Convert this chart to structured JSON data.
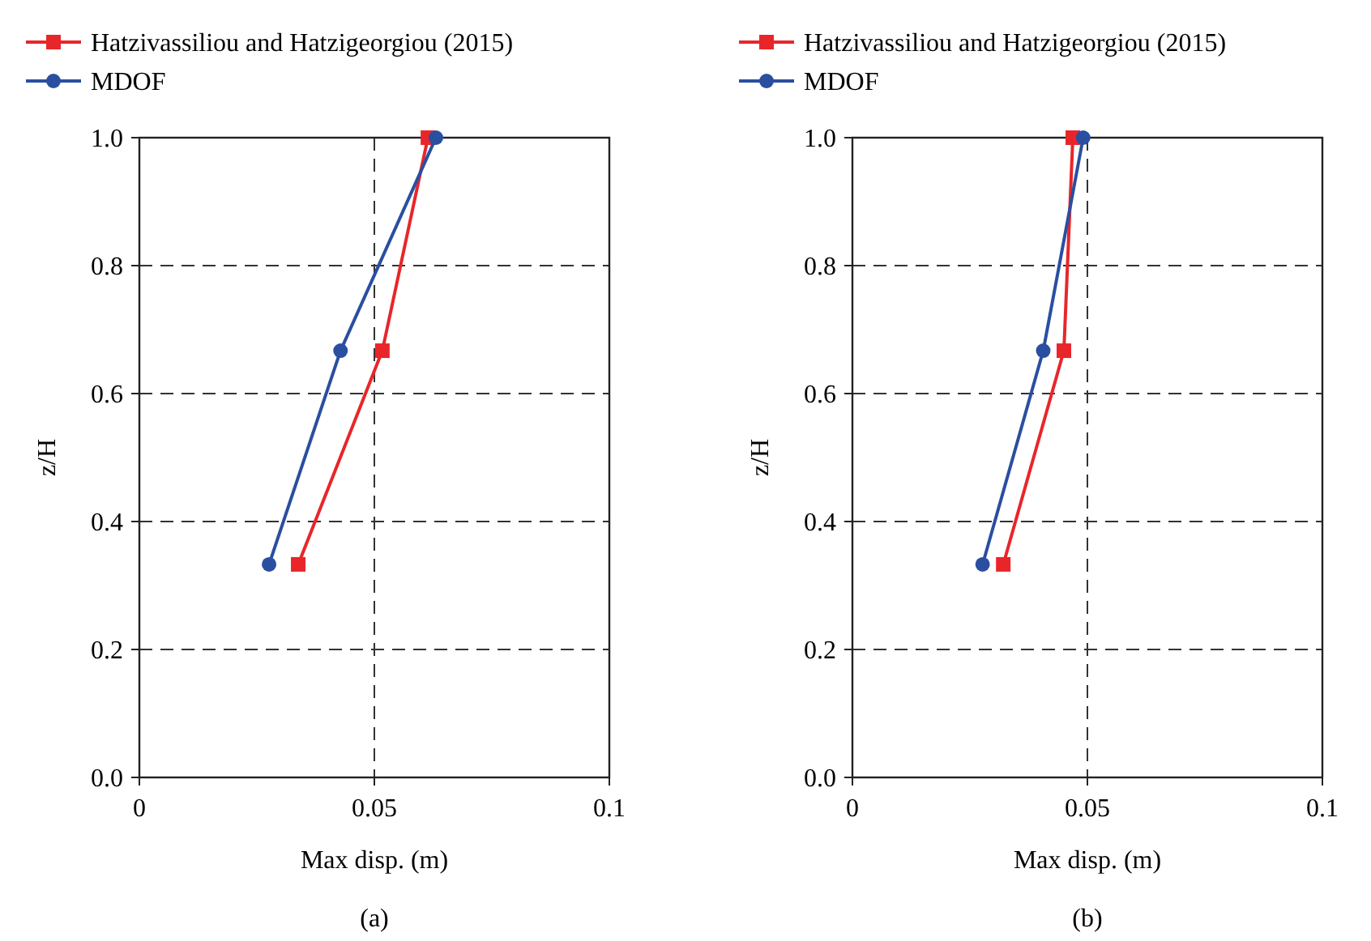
{
  "chart_data": [
    {
      "type": "line",
      "xlabel": "Max disp. (m)",
      "ylabel": "z/H",
      "annotations": [
        "(a)"
      ],
      "xlim": [
        0,
        0.1
      ],
      "xticks": [
        0,
        0.05,
        0.1
      ],
      "ylim": [
        0,
        1
      ],
      "yticks": [
        {
          "value": 0,
          "label": "0.0"
        },
        {
          "value": 0.2,
          "label": "0.2"
        },
        {
          "value": 0.4,
          "label": "0.4"
        },
        {
          "value": 0.6,
          "label": "0.6"
        },
        {
          "value": 0.8,
          "label": "0.8"
        },
        {
          "value": 1,
          "label": "1.0"
        }
      ],
      "grid": true,
      "legend": "top left",
      "line_style": "solid",
      "series": [
        {
          "name": "Hatzivassiliou and Hatzigeorgiou (2015)",
          "color": "#e8262a",
          "marker": "square",
          "x": [
            0.0338,
            0.0517,
            0.0614
          ],
          "values": [
            0.333,
            0.667,
            1
          ]
        },
        {
          "name": "MDOF",
          "color": "#2a4fa0",
          "marker": "circle",
          "x": [
            0.0276,
            0.0428,
            0.0631
          ],
          "values": [
            0.333,
            0.667,
            1
          ]
        }
      ]
    },
    {
      "type": "line",
      "xlabel": "Max disp. (m)",
      "ylabel": "z/H",
      "annotations": [
        "(b)"
      ],
      "xlim": [
        0,
        0.1
      ],
      "xticks": [
        0,
        0.05,
        0.1
      ],
      "ylim": [
        0,
        1
      ],
      "yticks": [
        {
          "value": 0,
          "label": "0.0"
        },
        {
          "value": 0.2,
          "label": "0.2"
        },
        {
          "value": 0.4,
          "label": "0.4"
        },
        {
          "value": 0.6,
          "label": "0.6"
        },
        {
          "value": 0.8,
          "label": "0.8"
        },
        {
          "value": 1,
          "label": "1.0"
        }
      ],
      "grid": true,
      "legend": "top left",
      "line_style": "solid",
      "series": [
        {
          "name": "Hatzivassiliou and Hatzigeorgiou (2015)",
          "color": "#e8262a",
          "marker": "square",
          "x": [
            0.0321,
            0.045,
            0.0469
          ],
          "values": [
            0.333,
            0.667,
            1
          ]
        },
        {
          "name": "MDOF",
          "color": "#2a4fa0",
          "marker": "circle",
          "x": [
            0.0277,
            0.0406,
            0.0491
          ],
          "values": [
            0.333,
            0.667,
            1
          ]
        }
      ]
    }
  ]
}
